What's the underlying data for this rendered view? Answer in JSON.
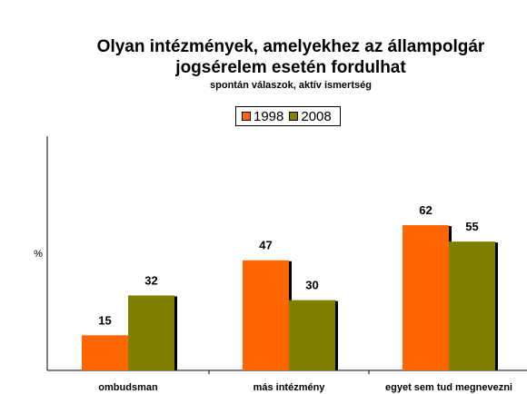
{
  "chart_data": {
    "type": "bar",
    "title_line1": "Olyan intézmények, amelyekhez az állampolgár",
    "title_line2": "jogsérelem esetén fordulhat",
    "subtitle": "spontán válaszok, aktív ismertség",
    "ylabel": "%",
    "categories": [
      "ombudsman",
      "más intézmény",
      "egyet sem tud megnevezni"
    ],
    "series": [
      {
        "name": "1998",
        "color": "#ff6600",
        "values": [
          15,
          47,
          62
        ]
      },
      {
        "name": "2008",
        "color": "#808000",
        "values": [
          32,
          30,
          55
        ]
      }
    ],
    "ylim": [
      0,
      100
    ],
    "grid": false,
    "legend_position": "top-center"
  }
}
